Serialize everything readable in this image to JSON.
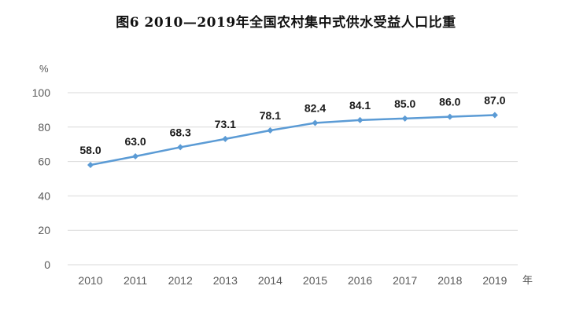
{
  "chart_data": {
    "type": "line",
    "title": "图6   2010—2019年全国农村集中式供水受益人口比重",
    "ylabel": "%",
    "xlabel": "年",
    "categories": [
      "2010",
      "2011",
      "2012",
      "2013",
      "2014",
      "2015",
      "2016",
      "2017",
      "2018",
      "2019"
    ],
    "series": [
      {
        "values": [
          58.0,
          63.0,
          68.3,
          73.1,
          78.1,
          82.4,
          84.1,
          85.0,
          86.0,
          87.0
        ]
      }
    ],
    "data_labels": [
      "58.0",
      "63.0",
      "68.3",
      "73.1",
      "78.1",
      "82.4",
      "84.1",
      "85.0",
      "86.0",
      "87.0"
    ],
    "yticks": [
      0,
      20,
      40,
      60,
      80,
      100
    ],
    "ylim": [
      0,
      100
    ],
    "grid": true,
    "legend": "none",
    "line_color": "#5b9bd5"
  }
}
